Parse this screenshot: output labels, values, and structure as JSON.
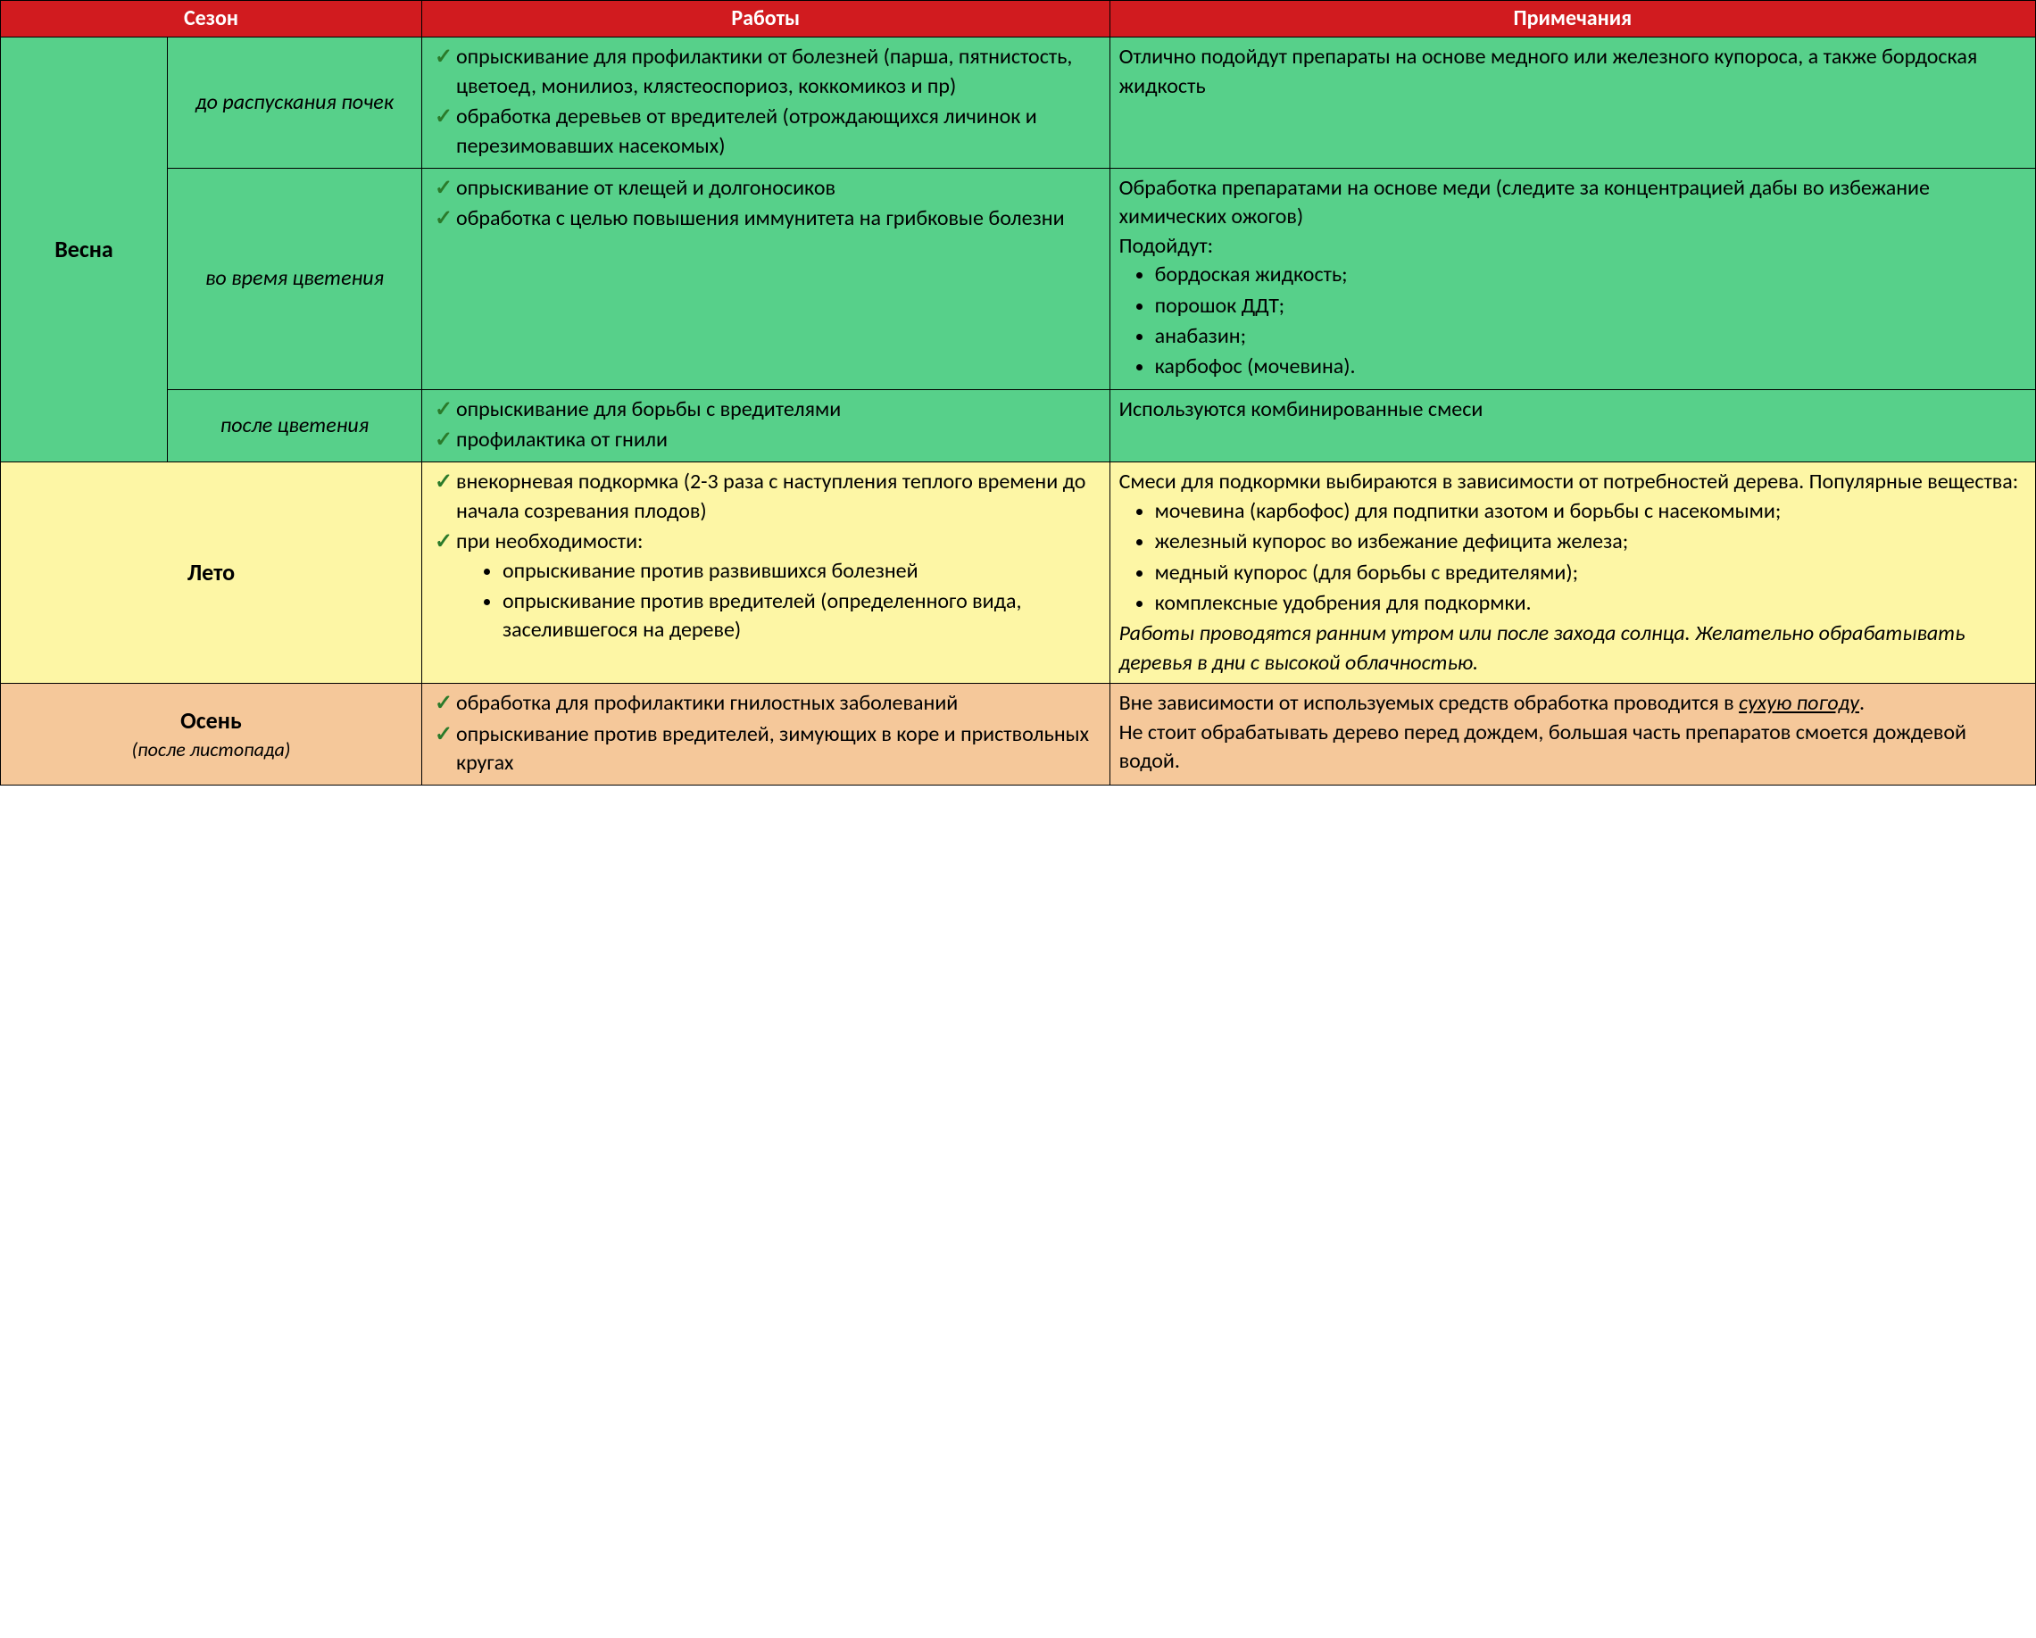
{
  "colors": {
    "header_bg": "#d11b1f",
    "spring_bg": "#57d08a",
    "summer_bg": "#fdf6a5",
    "autumn_bg": "#f5c89a",
    "border": "#000000",
    "check_color": "#2a7a2a"
  },
  "columns": {
    "season": "Сезон",
    "works": "Работы",
    "notes": "Примечания",
    "col1_w": "8.2%",
    "col2_w": "12.5%",
    "col3_w": "33.8%",
    "col4_w": "45.5%"
  },
  "rows": {
    "spring": {
      "label": "Весна",
      "phase1": {
        "label": "до распускания почек",
        "works": [
          "опрыскивание для профилактики от болезней (парша, пятнистость, цветоед, монилиоз, клястеоспориоз, коккомикоз и пр)",
          "обработка деревьев от вредителей (отрождающихся личинок и перезимовавших насекомых)"
        ],
        "notes_text": "Отлично подойдут препараты на основе медного или железного купороса, а также бордоская жидкость"
      },
      "phase2": {
        "label": "во время цветения",
        "works": [
          "опрыскивание от клещей и долгоносиков",
          "обработка с целью повышения иммунитета на грибковые болезни"
        ],
        "notes_intro": "Обработка препаратами на основе меди (следите за концентрацией дабы во избежание химических ожогов)",
        "notes_fits": "Подойдут:",
        "notes_list": [
          "бордоская жидкость;",
          "порошок ДДТ;",
          "анабазин;",
          "карбофос (мочевина)."
        ]
      },
      "phase3": {
        "label": "после цветения",
        "works": [
          "опрыскивание для борьбы с вредителями",
          "профилактика от гнили"
        ],
        "notes_text": "Используются комбинированные смеси"
      }
    },
    "summer": {
      "label": "Лето",
      "works": {
        "check1": "внекорневая подкормка (2-3 раза с наступления теплого времени до начала созревания плодов)",
        "check2": "при необходимости:",
        "sub": [
          "опрыскивание против развившихся болезней",
          "опрыскивание против вредителей (определенного вида, заселившегося на дереве)"
        ]
      },
      "notes_intro": "Смеси для подкормки выбираются в зависимости от потребностей дерева. Популярные вещества:",
      "notes_list": [
        "мочевина (карбофос) для подпитки азотом и борьбы с насекомыми;",
        "железный купорос во избежание дефицита железа;",
        "медный купорос (для борьбы с вредителями);",
        "комплексные удобрения для подкормки."
      ],
      "notes_italic": "Работы проводятся ранним утром или после захода солнца. Желательно обрабатывать деревья в дни с высокой облачностью."
    },
    "autumn": {
      "label": "Осень",
      "sub": "(после листопада)",
      "works": [
        "обработка для профилактики гнилостных заболеваний",
        "опрыскивание против вредителей, зимующих в коре и приствольных кругах"
      ],
      "notes_p1_a": "Вне зависимости от используемых средств обработка проводится в ",
      "notes_p1_u": "сухую погоду",
      "notes_p1_b": ".",
      "notes_p2": "Не стоит обрабатывать дерево перед дождем, большая часть препаратов смоется дождевой водой."
    }
  }
}
